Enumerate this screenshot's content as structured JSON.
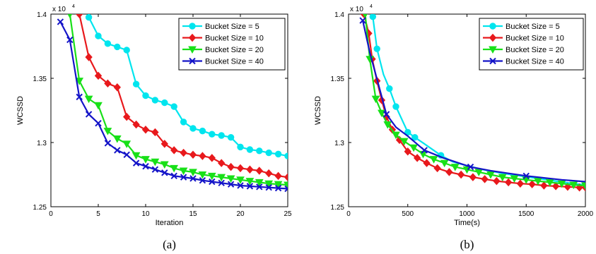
{
  "colors": {
    "Bucket Size = 5": "#00e5ee",
    "Bucket Size = 10": "#e8191c",
    "Bucket Size = 20": "#18e018",
    "Bucket Size = 40": "#1414c8"
  },
  "chart_data": [
    {
      "type": "line",
      "caption": "(a)",
      "xlabel": "Iteration",
      "ylabel": "WCSSD",
      "exponent_label": "x 10",
      "exponent_power": "4",
      "xlim": [
        0,
        25
      ],
      "ylim": [
        12500,
        14000
      ],
      "xticks": [
        0,
        5,
        10,
        15,
        20,
        25
      ],
      "yticks": [
        12500,
        13000,
        13500,
        14000
      ],
      "ytick_labels": [
        "1.25",
        "1.3",
        "1.35",
        "1.4"
      ],
      "legend_position": "top-right",
      "series": [
        {
          "name": "Bucket Size = 5",
          "marker": "circle",
          "x": [
            4,
            5,
            6,
            7,
            8,
            9,
            10,
            11,
            12,
            13,
            14,
            15,
            16,
            17,
            18,
            19,
            20,
            21,
            22,
            23,
            24,
            25
          ],
          "y": [
            13975,
            13830,
            13770,
            13745,
            13720,
            13455,
            13365,
            13330,
            13310,
            13280,
            13160,
            13110,
            13090,
            13065,
            13055,
            13040,
            12965,
            12945,
            12935,
            12920,
            12910,
            12895
          ]
        },
        {
          "name": "Bucket Size = 10",
          "marker": "diamond",
          "x": [
            3,
            4,
            5,
            6,
            7,
            8,
            9,
            10,
            11,
            12,
            13,
            14,
            15,
            16,
            17,
            18,
            19,
            20,
            21,
            22,
            23,
            24,
            25
          ],
          "y": [
            14000,
            13665,
            13520,
            13460,
            13430,
            13200,
            13140,
            13100,
            13080,
            12990,
            12940,
            12920,
            12905,
            12895,
            12880,
            12840,
            12810,
            12800,
            12790,
            12780,
            12760,
            12740,
            12730
          ]
        },
        {
          "name": "Bucket Size = 20",
          "marker": "triangle-down",
          "x": [
            2,
            3,
            4,
            5,
            6,
            7,
            8,
            9,
            10,
            11,
            12,
            13,
            14,
            15,
            16,
            17,
            18,
            19,
            20,
            21,
            22,
            23,
            24,
            25
          ],
          "y": [
            14000,
            13480,
            13340,
            13290,
            13090,
            13030,
            12990,
            12900,
            12870,
            12850,
            12830,
            12800,
            12780,
            12770,
            12750,
            12740,
            12730,
            12720,
            12710,
            12700,
            12690,
            12680,
            12675,
            12670
          ]
        },
        {
          "name": "Bucket Size = 40",
          "marker": "x",
          "x": [
            1,
            2,
            3,
            4,
            5,
            6,
            7,
            8,
            9,
            10,
            11,
            12,
            13,
            14,
            15,
            16,
            17,
            18,
            19,
            20,
            21,
            22,
            23,
            24,
            25
          ],
          "y": [
            13940,
            13800,
            13355,
            13220,
            13150,
            12995,
            12940,
            12905,
            12840,
            12815,
            12790,
            12765,
            12740,
            12730,
            12720,
            12705,
            12695,
            12685,
            12675,
            12665,
            12660,
            12655,
            12650,
            12645,
            12640
          ]
        }
      ]
    },
    {
      "type": "line",
      "caption": "(b)",
      "xlabel": "Time(s)",
      "ylabel": "WCSSD",
      "exponent_label": "x 10",
      "exponent_power": "4",
      "xlim": [
        0,
        2000
      ],
      "ylim": [
        12500,
        14000
      ],
      "xticks": [
        0,
        500,
        1000,
        1500,
        2000
      ],
      "yticks": [
        12500,
        13000,
        13500,
        14000
      ],
      "ytick_labels": [
        "1.25",
        "1.3",
        "1.35",
        "1.4"
      ],
      "legend_position": "top-right",
      "series": [
        {
          "name": "Bucket Size = 5",
          "marker": "circle",
          "x": [
            205,
            240,
            295,
            345,
            400,
            500,
            560,
            640,
            780,
            880,
            1000,
            1130,
            1300,
            1450,
            1600,
            1750,
            1900,
            2000
          ],
          "y": [
            13980,
            13730,
            13530,
            13420,
            13280,
            13080,
            13040,
            12990,
            12900,
            12850,
            12820,
            12790,
            12760,
            12740,
            12720,
            12700,
            12680,
            12670
          ],
          "marker_every": [
            0,
            1,
            3,
            4,
            5,
            6,
            8
          ]
        },
        {
          "name": "Bucket Size = 10",
          "marker": "diamond",
          "x": [
            130,
            170,
            200,
            240,
            280,
            320,
            370,
            430,
            500,
            580,
            660,
            750,
            850,
            950,
            1050,
            1150,
            1250,
            1350,
            1450,
            1550,
            1650,
            1750,
            1850,
            1950,
            2000
          ],
          "y": [
            14000,
            13850,
            13650,
            13480,
            13330,
            13200,
            13100,
            13020,
            12930,
            12880,
            12840,
            12800,
            12770,
            12750,
            12730,
            12715,
            12700,
            12690,
            12680,
            12675,
            12665,
            12660,
            12655,
            12650,
            12650
          ]
        },
        {
          "name": "Bucket Size = 20",
          "marker": "triangle-down",
          "x": [
            140,
            180,
            230,
            280,
            330,
            400,
            470,
            550,
            630,
            720,
            810,
            900,
            1000,
            1100,
            1200,
            1300,
            1400,
            1500,
            1600,
            1700,
            1800,
            1900,
            2000
          ],
          "y": [
            14000,
            13650,
            13340,
            13230,
            13140,
            13060,
            13010,
            12960,
            12910,
            12870,
            12840,
            12810,
            12790,
            12770,
            12750,
            12730,
            12720,
            12710,
            12700,
            12690,
            12680,
            12670,
            12665
          ]
        },
        {
          "name": "Bucket Size = 40",
          "marker": "x",
          "x": [
            120,
            180,
            250,
            320,
            400,
            500,
            640,
            800,
            1030,
            1200,
            1350,
            1500,
            1650,
            1800,
            2000
          ],
          "y": [
            13950,
            13700,
            13460,
            13220,
            13120,
            13050,
            12940,
            12880,
            12810,
            12780,
            12760,
            12740,
            12725,
            12710,
            12695
          ],
          "marker_every": [
            0,
            3,
            6,
            8,
            11
          ]
        }
      ]
    }
  ]
}
